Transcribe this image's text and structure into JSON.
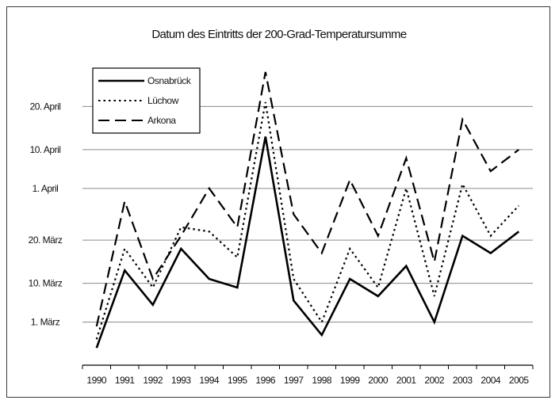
{
  "chart_data": {
    "type": "line",
    "title": "Datum des Eintritts der 200-Grad-Temperatursumme",
    "xlabel": "",
    "ylabel": "",
    "categories": [
      "1990",
      "1991",
      "1992",
      "1993",
      "1994",
      "1995",
      "1996",
      "1997",
      "1998",
      "1999",
      "2000",
      "2001",
      "2002",
      "2003",
      "2004",
      "2005"
    ],
    "y_ticks": [
      {
        "label": "1. März",
        "value": 60
      },
      {
        "label": "10. März",
        "value": 69
      },
      {
        "label": "20. März",
        "value": 79
      },
      {
        "label": "1. April",
        "value": 91
      },
      {
        "label": "10. April",
        "value": 100
      },
      {
        "label": "20. April",
        "value": 110
      }
    ],
    "y_unit": "day of year",
    "ylim": [
      50,
      120
    ],
    "grid": true,
    "legend_position": "top-left",
    "series": [
      {
        "name": "Osnabrück",
        "style": "solid",
        "values": [
          54,
          72,
          64,
          77,
          70,
          68,
          103,
          65,
          57,
          70,
          66,
          73,
          60,
          80,
          76,
          81
        ]
      },
      {
        "name": "Lüchow",
        "style": "dotted",
        "values": [
          56,
          77,
          68,
          82,
          81,
          75,
          111,
          70,
          60,
          77,
          68,
          91,
          66,
          92,
          80,
          87
        ]
      },
      {
        "name": "Arkona",
        "style": "dashed",
        "values": [
          59,
          88,
          70,
          80,
          91,
          82,
          118,
          85,
          76,
          93,
          80,
          98,
          74,
          107,
          95,
          100
        ]
      }
    ],
    "colors": {
      "line": "#000000",
      "grid": "#8a8a8a",
      "frame": "#3a3a3a"
    }
  }
}
